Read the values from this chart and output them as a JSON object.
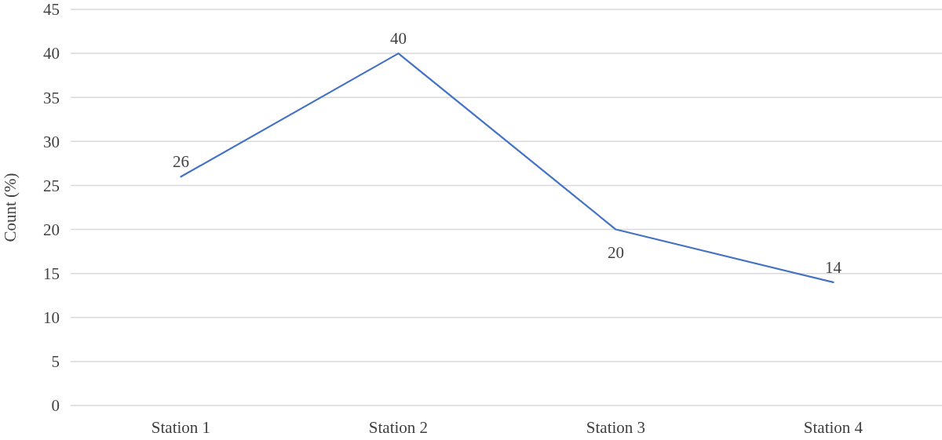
{
  "chart_data": {
    "type": "line",
    "ylabel": "Count (%)",
    "categories": [
      "Station 1",
      "Station 2",
      "Station 3",
      "Station 4"
    ],
    "series": [
      {
        "color": "#4472c4",
        "values": [
          26,
          40,
          20,
          14
        ]
      }
    ],
    "ylim": [
      0,
      45
    ],
    "yticks": [
      0,
      5,
      10,
      15,
      20,
      25,
      30,
      35,
      40,
      45
    ],
    "grid": "y",
    "data_labels": true,
    "marker": "none",
    "line_style": "solid"
  }
}
